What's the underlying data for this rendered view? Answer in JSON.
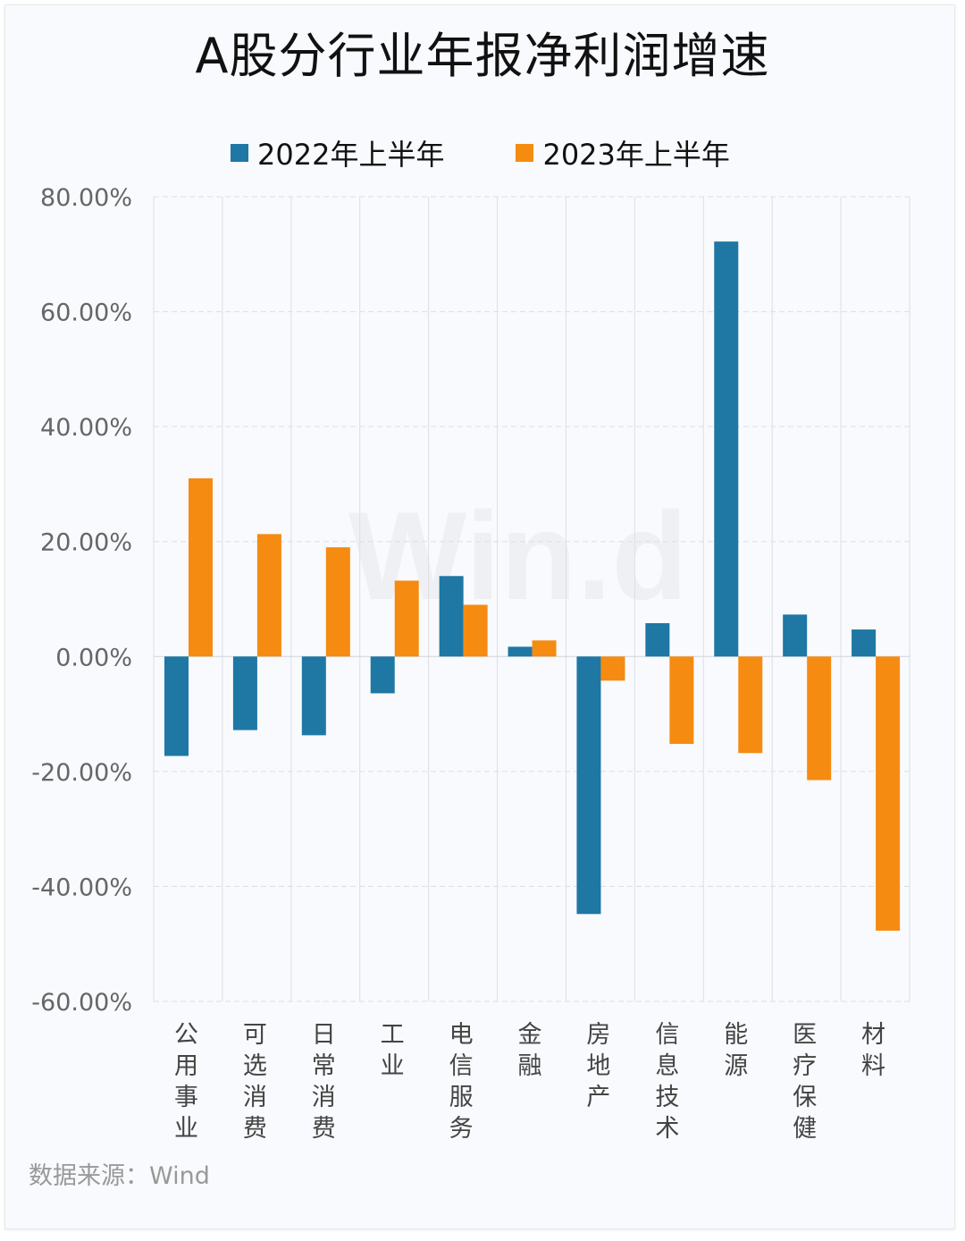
{
  "title": "A股分行业年报净利润增速",
  "source": "数据来源：Wind",
  "watermark": "Win.d",
  "colors": {
    "s2022": "#1f77a4",
    "s2023": "#f68b12"
  },
  "chart_data": {
    "type": "bar",
    "title": "A股分行业年报净利润增速",
    "categories": [
      "公用事业",
      "可选消费",
      "日常消费",
      "工业",
      "电信服务",
      "金融",
      "房地产",
      "信息技术",
      "能源",
      "医疗保健",
      "材料"
    ],
    "series": [
      {
        "name": "2022年上半年",
        "values": [
          -17.3,
          -12.8,
          -13.7,
          -6.4,
          14.0,
          1.7,
          -44.8,
          5.8,
          72.2,
          7.3,
          4.7
        ]
      },
      {
        "name": "2023年上半年",
        "values": [
          31.0,
          21.3,
          19.0,
          13.2,
          9.0,
          2.8,
          -4.2,
          -15.2,
          -16.8,
          -21.5,
          -47.7
        ]
      }
    ],
    "ylim": [
      -60,
      80
    ],
    "yticks": [
      "80.00%",
      "60.00%",
      "40.00%",
      "20.00%",
      "0.00%",
      "-20.00%",
      "-40.00%",
      "-60.00%"
    ],
    "ytick_values": [
      80,
      60,
      40,
      20,
      0,
      -20,
      -40,
      -60
    ],
    "legend": "top-center",
    "grid": true
  }
}
